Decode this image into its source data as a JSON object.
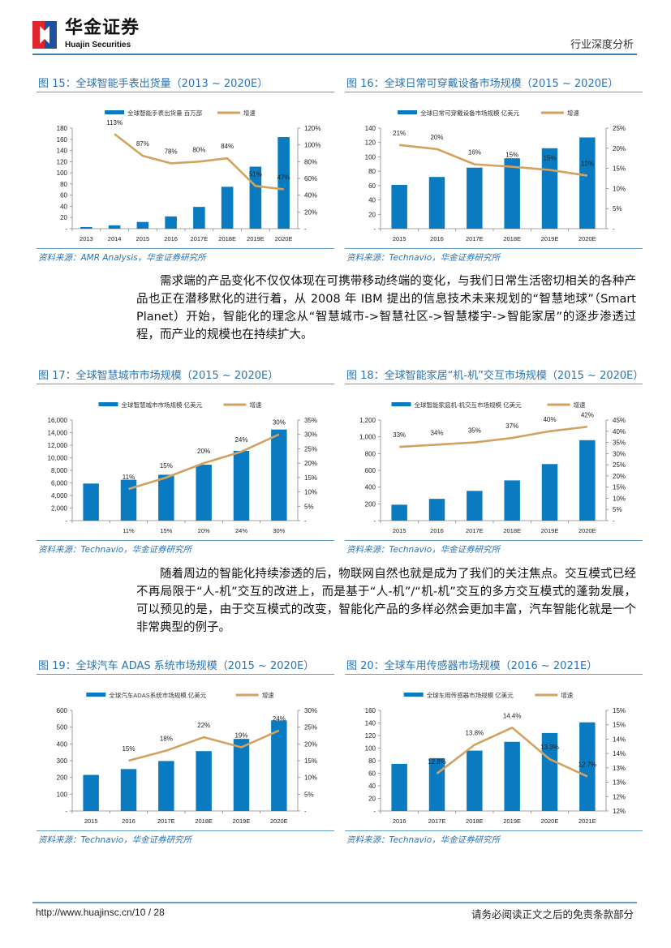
{
  "header": {
    "brand_cn": "华金证券",
    "brand_en": "Huajin Securities",
    "doc_type": "行业深度分析",
    "logo_colors": {
      "red": "#e0262b",
      "blue": "#1f4fa0"
    }
  },
  "paragraphs": [
    "需求端的产品变化不仅仅体现在可携带移动终端的变化，与我们日常生活密切相关的各种产品也正在潜移默化的进行着，从 2008 年 IBM 提出的信息技术未来规划的“智慧地球”（Smart Planet）开始，智能化的理念从“智慧城市->智慧社区->智慧楼宇->智能家居”的逐步渗透过程，而产业的规模也在持续扩大。",
    "随着周边的智能化持续渗透的后，物联网自然也就是成为了我们的关注焦点。交互模式已经不再局限于“人-机”交互的改进上，而是基于“人-机”/“机-机”交互的多方交互模式的蓬勃发展，可以预见的是，由于交互模式的改变，智能化产品的多样必然会更加丰富，汽车智能化就是一个非常典型的例子。"
  ],
  "footer": {
    "url_page": "http://www.huajinsc.cn/10 / 28",
    "note": "请务必阅读正文之后的免责条款部分"
  },
  "colors": {
    "bar": "#0b7bc1",
    "line": "#d4a260",
    "title": "#2a74b4"
  },
  "chart_data": [
    {
      "type": "bar+line",
      "title": "图 15：全球智能手表出货量（2013 ~ 2020E）",
      "source": "资料来源：AMR Analysis，华金证券研究所",
      "categories": [
        "2013",
        "2014",
        "2015",
        "2016",
        "2017E",
        "2018E",
        "2019E",
        "2020E"
      ],
      "series": [
        {
          "name": "全球智能手表出货量 百万部",
          "type": "bar",
          "axis": "left",
          "values": [
            3,
            6,
            12,
            22,
            39,
            75,
            111,
            164
          ]
        },
        {
          "name": "增速",
          "type": "line",
          "axis": "right",
          "values": [
            null,
            113,
            87,
            78,
            80,
            84,
            51,
            47
          ],
          "labels": [
            "",
            "113%",
            "87%",
            "78%",
            "80%",
            "84%",
            "51%",
            "47%"
          ]
        }
      ],
      "ylim_left": [
        0,
        180
      ],
      "ytick_left": [
        "-",
        "20",
        "40",
        "60",
        "80",
        "100",
        "120",
        "140",
        "160",
        "180"
      ],
      "ylim_right": [
        0,
        120
      ],
      "ytick_right": [
        "-",
        "20%",
        "40%",
        "60%",
        "80%",
        "100%",
        "120%"
      ]
    },
    {
      "type": "bar+line",
      "title": "图 16：全球日常可穿戴设备市场规模（2015 ~ 2020E）",
      "source": "资料来源：Technavio，华金证券研究所",
      "categories": [
        "2015",
        "2016",
        "2017E",
        "2018E",
        "2019E",
        "2020E"
      ],
      "series": [
        {
          "name": "全球日常可穿戴设备市场规模  亿美元",
          "type": "bar",
          "axis": "left",
          "values": [
            61,
            72,
            85,
            98,
            112,
            127
          ]
        },
        {
          "name": "增速",
          "type": "line",
          "axis": "right",
          "values": [
            20.8,
            19.8,
            16,
            15.4,
            14.6,
            13.2
          ],
          "labels": [
            "21%",
            "20%",
            "16%",
            "15%",
            "15%",
            "13%"
          ]
        }
      ],
      "ylim_left": [
        0,
        140
      ],
      "ytick_left": [
        "-",
        "20",
        "40",
        "60",
        "80",
        "100",
        "120",
        "140"
      ],
      "ylim_right": [
        0,
        25
      ],
      "ytick_right": [
        "-",
        "5%",
        "10%",
        "15%",
        "20%",
        "25%"
      ]
    },
    {
      "type": "bar+line",
      "title": "图 17：全球智慧城市市场规模（2015 ~ 2020E）",
      "source": "资料来源：Technavio，华金证券研究所",
      "categories": [
        "",
        "11%",
        "15%",
        "20%",
        "24%",
        "30%"
      ],
      "series": [
        {
          "name": "全球智慧城市市场规模  亿美元",
          "type": "bar",
          "axis": "left",
          "values": [
            5900,
            6500,
            7300,
            8900,
            11100,
            14500
          ]
        },
        {
          "name": "增速",
          "type": "line",
          "axis": "right",
          "values": [
            null,
            11,
            15,
            20,
            24,
            30
          ],
          "labels": [
            "",
            "11%",
            "15%",
            "20%",
            "24%",
            "30%"
          ]
        }
      ],
      "ylim_left": [
        0,
        16000
      ],
      "ytick_left": [
        "-",
        "2,000",
        "4,000",
        "6,000",
        "8,000",
        "10,000",
        "12,000",
        "14,000",
        "16,000"
      ],
      "ylim_right": [
        0,
        35
      ],
      "ytick_right": [
        "-",
        "5%",
        "10%",
        "15%",
        "20%",
        "25%",
        "30%",
        "35%"
      ]
    },
    {
      "type": "bar+line",
      "title": "图 18：全球智能家居“机-机”交互市场规模（2015 ~ 2020E）",
      "source": "资料来源：Technavio，华金证券研究所",
      "categories": [
        "2015",
        "2016",
        "2017E",
        "2018E",
        "2019E",
        "2020E"
      ],
      "series": [
        {
          "name": "全球智能家庭机-机交互市场规模  亿美元",
          "type": "bar",
          "axis": "left",
          "values": [
            190,
            260,
            355,
            480,
            675,
            960
          ]
        },
        {
          "name": "增速",
          "type": "line",
          "axis": "right",
          "values": [
            33,
            34,
            35,
            37,
            40,
            42
          ],
          "labels": [
            "33%",
            "34%",
            "35%",
            "37%",
            "40%",
            "42%"
          ]
        }
      ],
      "ylim_left": [
        0,
        1200
      ],
      "ytick_left": [
        "-",
        "200",
        "400",
        "600",
        "800",
        "1,000",
        "1,200"
      ],
      "ylim_right": [
        0,
        45
      ],
      "ytick_right": [
        "-",
        "5%",
        "10%",
        "15%",
        "20%",
        "25%",
        "30%",
        "35%",
        "40%",
        "45%"
      ]
    },
    {
      "type": "bar+line",
      "title": "图 19：全球汽车 ADAS 系统市场规模（2015 ~ 2020E）",
      "source": "资料来源：Technavio，华金证券研究所",
      "categories": [
        "2015",
        "2016",
        "2017E",
        "2018E",
        "2019E",
        "2020E"
      ],
      "series": [
        {
          "name": "全球汽车ADAS系统市场规模  亿美元",
          "type": "bar",
          "axis": "left",
          "values": [
            215,
            250,
            298,
            357,
            430,
            540
          ]
        },
        {
          "name": "增速",
          "type": "line",
          "axis": "right",
          "values": [
            null,
            15,
            18,
            22,
            19,
            24
          ],
          "labels": [
            "",
            "15%",
            "18%",
            "22%",
            "19%",
            "24%"
          ]
        }
      ],
      "ylim_left": [
        0,
        600
      ],
      "ytick_left": [
        "-",
        "100",
        "200",
        "300",
        "400",
        "500",
        "600"
      ],
      "ylim_right": [
        0,
        30
      ],
      "ytick_right": [
        "-",
        "5%",
        "10%",
        "15%",
        "20%",
        "25%",
        "30%"
      ]
    },
    {
      "type": "bar+line",
      "title": "图 20：全球车用传感器市场规模（2016 ~ 2021E）",
      "source": "资料来源：Technavio，华金证券研究所",
      "categories": [
        "2016",
        "2017E",
        "2018E",
        "2019E",
        "2020E",
        "2021E"
      ],
      "series": [
        {
          "name": "全球车用传感器市场规模  亿美元",
          "type": "bar",
          "axis": "left",
          "values": [
            75,
            84,
            96,
            110,
            124,
            141
          ]
        },
        {
          "name": "增速",
          "type": "line",
          "axis": "right",
          "values": [
            null,
            12.8,
            13.8,
            14.4,
            13.3,
            12.7
          ],
          "labels": [
            "",
            "12.8%",
            "13.8%",
            "14.4%",
            "13.3%",
            "12.7%"
          ]
        }
      ],
      "ylim_left": [
        0,
        160
      ],
      "ytick_left": [
        "-",
        "20",
        "40",
        "60",
        "80",
        "100",
        "120",
        "140",
        "160"
      ],
      "ylim_right": [
        11.5,
        15
      ],
      "ytick_right": [
        "12%",
        "12%",
        "13%",
        "13%",
        "14%",
        "14%",
        "15%",
        "15%"
      ]
    }
  ]
}
